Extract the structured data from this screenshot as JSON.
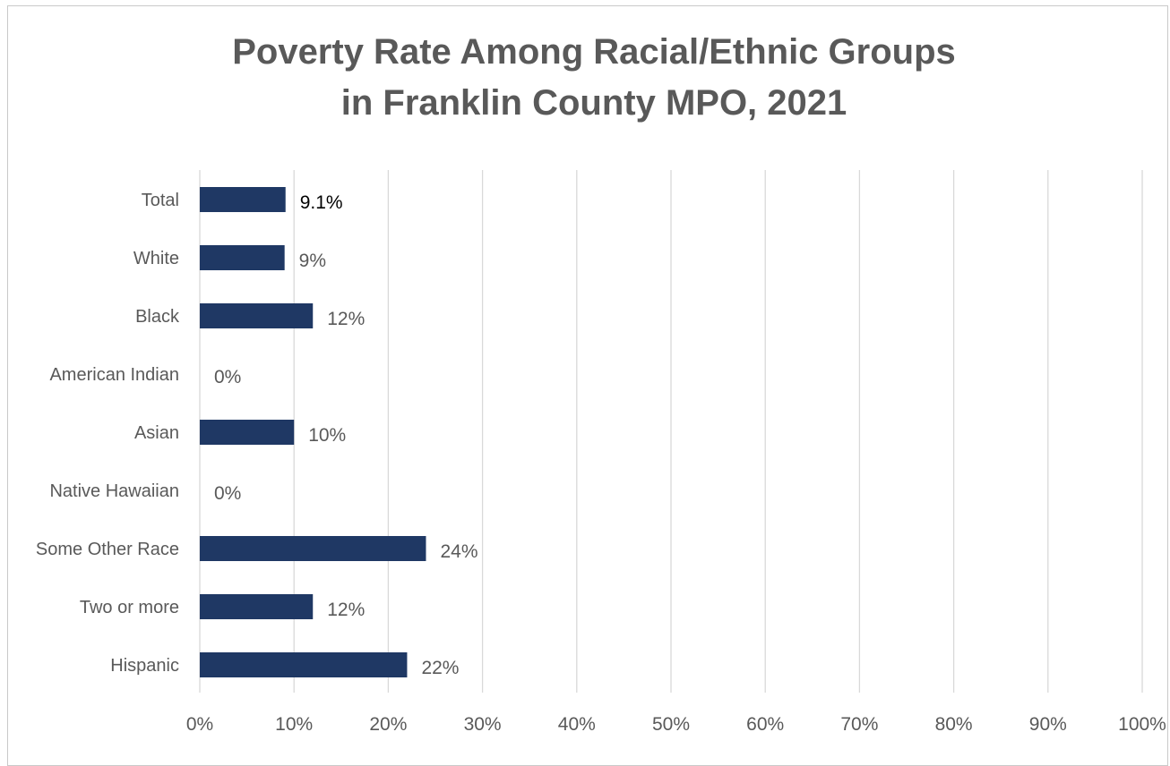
{
  "chart_data": {
    "type": "bar",
    "orientation": "horizontal",
    "title_lines": [
      "Poverty Rate Among Racial/Ethnic Groups",
      "in Franklin County MPO, 2021"
    ],
    "categories": [
      "Total",
      "White",
      "Black",
      "American Indian",
      "Asian",
      "Native Hawaiian",
      "Some Other Race",
      "Two or more",
      "Hispanic"
    ],
    "values": [
      9.1,
      9,
      12,
      0,
      10,
      0,
      24,
      12,
      22
    ],
    "value_labels": [
      "9.1%",
      "9%",
      "12%",
      "0%",
      "10%",
      "0%",
      "24%",
      "12%",
      "22%"
    ],
    "xlim": [
      0,
      100
    ],
    "x_ticks": [
      0,
      10,
      20,
      30,
      40,
      50,
      60,
      70,
      80,
      90,
      100
    ],
    "x_tick_labels": [
      "0%",
      "10%",
      "20%",
      "30%",
      "40%",
      "50%",
      "60%",
      "70%",
      "80%",
      "90%",
      "100%"
    ],
    "xlabel": "",
    "ylabel": "",
    "grid": true,
    "legend": "none",
    "colors": {
      "bar": "#1f3864",
      "grid": "#d9d9d9",
      "text": "#595959",
      "total_label": "#000000"
    }
  }
}
